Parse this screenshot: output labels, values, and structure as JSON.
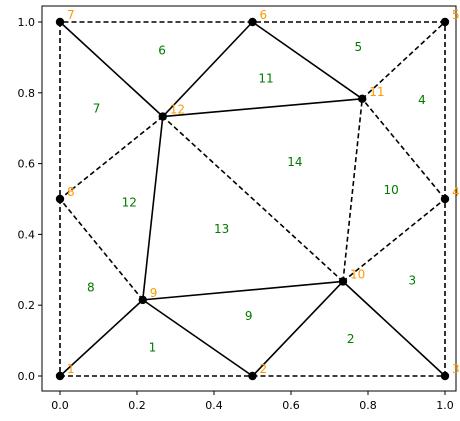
{
  "chart_data": {
    "type": "scatter",
    "title": "",
    "xlabel": "",
    "ylabel": "",
    "xlim": [
      -0.05,
      1.05
    ],
    "ylim": [
      -0.03,
      1.03
    ],
    "xticks": [
      "0.0",
      "0.2",
      "0.4",
      "0.6",
      "0.8",
      "1.0"
    ],
    "yticks": [
      "0.0",
      "0.2",
      "0.4",
      "0.6",
      "0.8",
      "1.0"
    ],
    "grid": false,
    "colors": {
      "edge": "#000000",
      "node": "#000000",
      "node_label": "#ff9900",
      "triangle_label": "#007a00"
    },
    "nodes": [
      {
        "id": "1",
        "x": 0.0,
        "y": 0.0
      },
      {
        "id": "2",
        "x": 0.5,
        "y": 0.0
      },
      {
        "id": "3",
        "x": 1.0,
        "y": 0.0
      },
      {
        "id": "4",
        "x": 1.0,
        "y": 0.5
      },
      {
        "id": "5",
        "x": 1.0,
        "y": 1.0
      },
      {
        "id": "6",
        "x": 0.5,
        "y": 1.0
      },
      {
        "id": "7",
        "x": 0.0,
        "y": 1.0
      },
      {
        "id": "8",
        "x": 0.0,
        "y": 0.5
      },
      {
        "id": "9",
        "x": 0.215,
        "y": 0.215
      },
      {
        "id": "10",
        "x": 0.735,
        "y": 0.267
      },
      {
        "id": "11",
        "x": 0.785,
        "y": 0.783
      },
      {
        "id": "12",
        "x": 0.267,
        "y": 0.733
      }
    ],
    "edges": [
      {
        "from": "1",
        "to": "2",
        "style": "dashed"
      },
      {
        "from": "2",
        "to": "3",
        "style": "dashed"
      },
      {
        "from": "3",
        "to": "4",
        "style": "dashed"
      },
      {
        "from": "4",
        "to": "5",
        "style": "dashed"
      },
      {
        "from": "5",
        "to": "6",
        "style": "dashed"
      },
      {
        "from": "6",
        "to": "7",
        "style": "dashed"
      },
      {
        "from": "7",
        "to": "8",
        "style": "dashed"
      },
      {
        "from": "8",
        "to": "1",
        "style": "dashed"
      },
      {
        "from": "1",
        "to": "9",
        "style": "solid"
      },
      {
        "from": "9",
        "to": "2",
        "style": "solid"
      },
      {
        "from": "9",
        "to": "8",
        "style": "dashed"
      },
      {
        "from": "9",
        "to": "10",
        "style": "solid"
      },
      {
        "from": "9",
        "to": "12",
        "style": "solid"
      },
      {
        "from": "2",
        "to": "10",
        "style": "solid"
      },
      {
        "from": "10",
        "to": "3",
        "style": "solid"
      },
      {
        "from": "10",
        "to": "4",
        "style": "dashed"
      },
      {
        "from": "10",
        "to": "11",
        "style": "dashed"
      },
      {
        "from": "10",
        "to": "12",
        "style": "dashed"
      },
      {
        "from": "4",
        "to": "11",
        "style": "dashed"
      },
      {
        "from": "11",
        "to": "5",
        "style": "dashed"
      },
      {
        "from": "11",
        "to": "6",
        "style": "solid"
      },
      {
        "from": "11",
        "to": "12",
        "style": "solid"
      },
      {
        "from": "12",
        "to": "6",
        "style": "solid"
      },
      {
        "from": "12",
        "to": "7",
        "style": "solid"
      },
      {
        "from": "12",
        "to": "8",
        "style": "dashed"
      }
    ],
    "triangles": [
      {
        "id": "1",
        "x": 0.24,
        "y": 0.08
      },
      {
        "id": "2",
        "x": 0.755,
        "y": 0.105
      },
      {
        "id": "3",
        "x": 0.915,
        "y": 0.27
      },
      {
        "id": "4",
        "x": 0.94,
        "y": 0.78
      },
      {
        "id": "5",
        "x": 0.775,
        "y": 0.93
      },
      {
        "id": "6",
        "x": 0.265,
        "y": 0.92
      },
      {
        "id": "7",
        "x": 0.095,
        "y": 0.755
      },
      {
        "id": "8",
        "x": 0.08,
        "y": 0.25
      },
      {
        "id": "9",
        "x": 0.49,
        "y": 0.17
      },
      {
        "id": "10",
        "x": 0.86,
        "y": 0.525
      },
      {
        "id": "11",
        "x": 0.535,
        "y": 0.84
      },
      {
        "id": "12",
        "x": 0.18,
        "y": 0.49
      },
      {
        "id": "13",
        "x": 0.42,
        "y": 0.415
      },
      {
        "id": "14",
        "x": 0.61,
        "y": 0.605
      }
    ]
  }
}
